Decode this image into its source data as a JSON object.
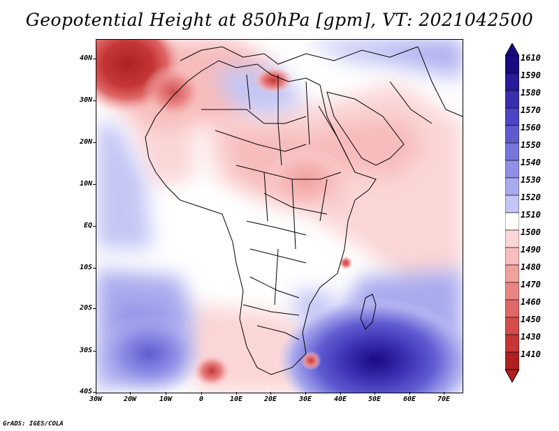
{
  "title": "Geopotential Height at 850hPa [gpm], VT: 2021042500",
  "footer": "GrADS: IGES/COLA",
  "lat_labels": [
    "40N",
    "30N",
    "20N",
    "10N",
    "EQ",
    "10S",
    "20S",
    "30S",
    "40S"
  ],
  "lon_labels": [
    "30W",
    "20W",
    "10W",
    "0",
    "10E",
    "20E",
    "30E",
    "40E",
    "50E",
    "60E",
    "70E"
  ],
  "colorbar": {
    "labels": [
      "1610",
      "1590",
      "1580",
      "1570",
      "1560",
      "1550",
      "1540",
      "1530",
      "1520",
      "1510",
      "1500",
      "1490",
      "1480",
      "1470",
      "1460",
      "1450",
      "1430",
      "1410"
    ],
    "colors": [
      "#1a0a80",
      "#2a1a9a",
      "#3a2eb0",
      "#4b44c4",
      "#5f5cd2",
      "#7676dc",
      "#8f90e6",
      "#a9aaee",
      "#c4c6f5",
      "#ffffff",
      "#fbd6d6",
      "#f7bcbc",
      "#f1a0a0",
      "#ea8484",
      "#e06767",
      "#d44c4c",
      "#c53636",
      "#b02020"
    ]
  },
  "features": {
    "high_pressure_cells": [
      "South Atlantic high",
      "South Indian Ocean high"
    ],
    "low_pressure_cells": [
      "NE Atlantic low",
      "Eastern Mediterranean low",
      "Mozambique Channel low",
      "South African low"
    ]
  }
}
